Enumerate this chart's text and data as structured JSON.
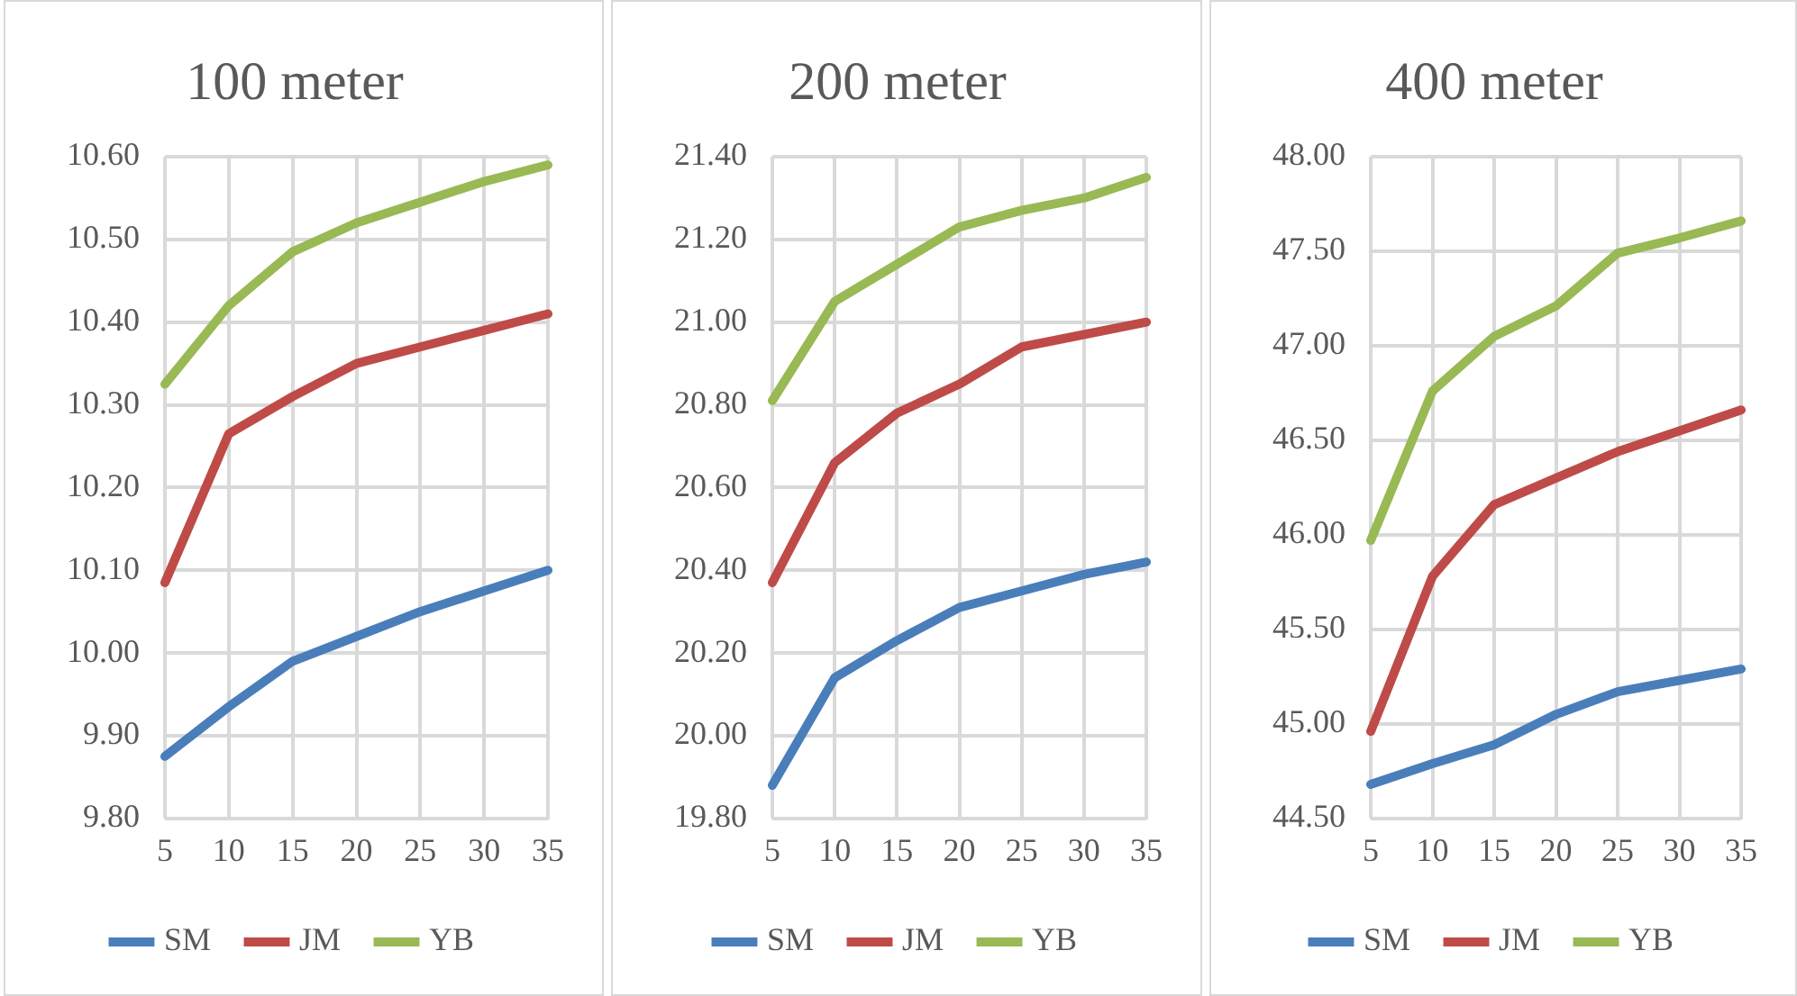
{
  "chart_data": [
    {
      "type": "line",
      "title": "100 meter",
      "categories": [
        "5",
        "10",
        "15",
        "20",
        "25",
        "30",
        "35"
      ],
      "series": [
        {
          "name": "SM",
          "color": "#4a7ebb",
          "values": [
            9.875,
            9.935,
            9.99,
            10.02,
            10.05,
            10.075,
            10.1
          ]
        },
        {
          "name": "JM",
          "color": "#be4b48",
          "values": [
            10.085,
            10.265,
            10.31,
            10.35,
            10.37,
            10.39,
            10.41
          ]
        },
        {
          "name": "YB",
          "color": "#98b954",
          "values": [
            10.325,
            10.42,
            10.485,
            10.52,
            10.545,
            10.57,
            10.59
          ]
        }
      ],
      "ylim": [
        9.8,
        10.6
      ],
      "yticks": [
        {
          "value": 9.8,
          "label": "9.80"
        },
        {
          "value": 9.9,
          "label": "9.90"
        },
        {
          "value": 10,
          "label": "10.00"
        },
        {
          "value": 10.1,
          "label": "10.10"
        },
        {
          "value": 10.2,
          "label": "10.20"
        },
        {
          "value": 10.3,
          "label": "10.30"
        },
        {
          "value": 10.4,
          "label": "10.40"
        },
        {
          "value": 10.5,
          "label": "10.50"
        },
        {
          "value": 10.6,
          "label": "10.60"
        }
      ],
      "grid": true,
      "legend": "bottom",
      "marker": "none",
      "line_style": "solid"
    },
    {
      "type": "line",
      "title": "200 meter",
      "categories": [
        "5",
        "10",
        "15",
        "20",
        "25",
        "30",
        "35"
      ],
      "series": [
        {
          "name": "SM",
          "color": "#4a7ebb",
          "values": [
            19.88,
            20.14,
            20.23,
            20.31,
            20.35,
            20.39,
            20.42
          ]
        },
        {
          "name": "JM",
          "color": "#be4b48",
          "values": [
            20.37,
            20.66,
            20.78,
            20.85,
            20.94,
            20.97,
            21.0
          ]
        },
        {
          "name": "YB",
          "color": "#98b954",
          "values": [
            20.81,
            21.05,
            21.14,
            21.23,
            21.27,
            21.3,
            21.35
          ]
        }
      ],
      "ylim": [
        19.8,
        21.4
      ],
      "yticks": [
        {
          "value": 19.8,
          "label": "19.80"
        },
        {
          "value": 20,
          "label": "20.00"
        },
        {
          "value": 20.2,
          "label": "20.20"
        },
        {
          "value": 20.4,
          "label": "20.40"
        },
        {
          "value": 20.6,
          "label": "20.60"
        },
        {
          "value": 20.8,
          "label": "20.80"
        },
        {
          "value": 21,
          "label": "21.00"
        },
        {
          "value": 21.2,
          "label": "21.20"
        },
        {
          "value": 21.4,
          "label": "21.40"
        }
      ],
      "grid": true,
      "legend": "bottom",
      "marker": "none",
      "line_style": "solid"
    },
    {
      "type": "line",
      "title": "400 meter",
      "categories": [
        "5",
        "10",
        "15",
        "20",
        "25",
        "30",
        "35"
      ],
      "series": [
        {
          "name": "SM",
          "color": "#4a7ebb",
          "values": [
            44.68,
            44.79,
            44.89,
            45.05,
            45.17,
            45.23,
            45.29
          ]
        },
        {
          "name": "JM",
          "color": "#be4b48",
          "values": [
            44.96,
            45.78,
            46.16,
            46.3,
            46.44,
            46.55,
            46.66
          ]
        },
        {
          "name": "YB",
          "color": "#98b954",
          "values": [
            45.97,
            46.76,
            47.05,
            47.21,
            47.49,
            47.57,
            47.66
          ]
        }
      ],
      "ylim": [
        44.5,
        48
      ],
      "yticks": [
        {
          "value": 44.5,
          "label": "44.50"
        },
        {
          "value": 45,
          "label": "45.00"
        },
        {
          "value": 45.5,
          "label": "45.50"
        },
        {
          "value": 46,
          "label": "46.00"
        },
        {
          "value": 46.5,
          "label": "46.50"
        },
        {
          "value": 47,
          "label": "47.00"
        },
        {
          "value": 47.5,
          "label": "47.50"
        },
        {
          "value": 48,
          "label": "48.00"
        }
      ],
      "grid": true,
      "legend": "bottom",
      "marker": "none",
      "line_style": "solid"
    }
  ]
}
